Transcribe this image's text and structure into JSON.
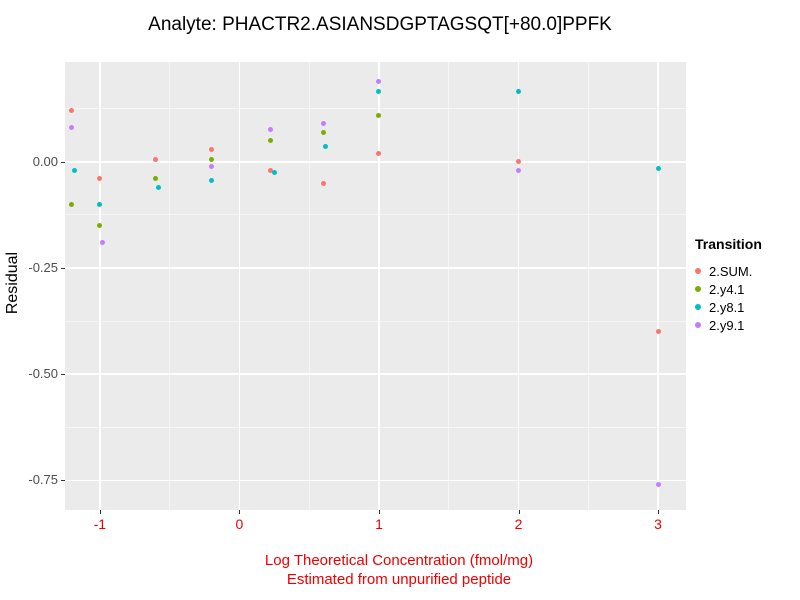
{
  "title": "Analyte: PHACTR2.ASIANSDGPTAGSQT[+80.0]PPFK",
  "y_axis": {
    "label": "Residual",
    "tick_labels": [
      "0.00",
      "-0.25",
      "-0.50",
      "-0.75"
    ],
    "tick_values": [
      0,
      -0.25,
      -0.5,
      -0.75
    ]
  },
  "x_axis": {
    "label_line1": "Log Theoretical Concentration (fmol/mg)",
    "label_line2": "Estimated from unpurified peptide",
    "tick_labels": [
      "-1",
      "0",
      "1",
      "2",
      "3"
    ],
    "tick_values": [
      -1,
      0,
      1,
      2,
      3
    ]
  },
  "legend": {
    "title": "Transition",
    "items": [
      {
        "label": "2.SUM.",
        "color": "#F8766D"
      },
      {
        "label": "2.y4.1",
        "color": "#7CAE00"
      },
      {
        "label": "2.y8.1",
        "color": "#00BFC4"
      },
      {
        "label": "2.y9.1",
        "color": "#C77CFF"
      }
    ]
  },
  "colors": {
    "panel_background": "#EBEBEB",
    "gridline": "#FFFFFF",
    "axis_text_x": "#EE0000",
    "axis_title_x": "#EE0000",
    "axis_text_y": "#4D4D4D",
    "title_text": "#000000"
  },
  "chart_data": {
    "type": "scatter",
    "title": "Analyte: PHACTR2.ASIANSDGPTAGSQT[+80.0]PPFK",
    "xlabel": "Log Theoretical Concentration (fmol/mg) / Estimated from unpurified peptide",
    "ylabel": "Residual",
    "xlim": [
      -1.25,
      3.2
    ],
    "ylim": [
      -0.82,
      0.235
    ],
    "x_major_ticks": [
      -1,
      0,
      1,
      2,
      3
    ],
    "x_minor_ticks": [
      -0.5,
      0.5,
      1.5,
      2.5
    ],
    "y_major_ticks": [
      0,
      -0.25,
      -0.5,
      -0.75
    ],
    "y_minor_ticks": [
      0.125,
      -0.125,
      -0.375,
      -0.625
    ],
    "grid": true,
    "legend_position": "right",
    "series": [
      {
        "name": "2.SUM.",
        "color": "#F8766D",
        "points": [
          [
            -1.2,
            0.12
          ],
          [
            -1,
            -0.04
          ],
          [
            -0.6,
            0.005
          ],
          [
            -0.2,
            0.03
          ],
          [
            0.22,
            -0.02
          ],
          [
            0.6,
            -0.05
          ],
          [
            1,
            0.02
          ],
          [
            2,
            0.0
          ],
          [
            3,
            -0.4
          ]
        ]
      },
      {
        "name": "2.y4.1",
        "color": "#7CAE00",
        "points": [
          [
            -1.2,
            -0.1
          ],
          [
            -1,
            -0.15
          ],
          [
            -0.6,
            -0.04
          ],
          [
            -0.2,
            0.005
          ],
          [
            0.22,
            0.05
          ],
          [
            0.6,
            0.07
          ],
          [
            1,
            0.11
          ]
        ]
      },
      {
        "name": "2.y8.1",
        "color": "#00BFC4",
        "points": [
          [
            -1.18,
            -0.02
          ],
          [
            -1,
            -0.1
          ],
          [
            -0.58,
            -0.06
          ],
          [
            -0.2,
            -0.045
          ],
          [
            0.25,
            -0.025
          ],
          [
            0.62,
            0.035
          ],
          [
            1,
            0.165
          ],
          [
            2,
            0.165
          ],
          [
            3,
            -0.015
          ]
        ]
      },
      {
        "name": "2.y9.1",
        "color": "#C77CFF",
        "points": [
          [
            -1.2,
            0.08
          ],
          [
            -0.98,
            -0.19
          ],
          [
            -0.2,
            -0.01
          ],
          [
            0.22,
            0.075
          ],
          [
            0.6,
            0.09
          ],
          [
            1,
            0.19
          ],
          [
            2,
            -0.02
          ],
          [
            3,
            -0.76
          ]
        ]
      }
    ]
  }
}
